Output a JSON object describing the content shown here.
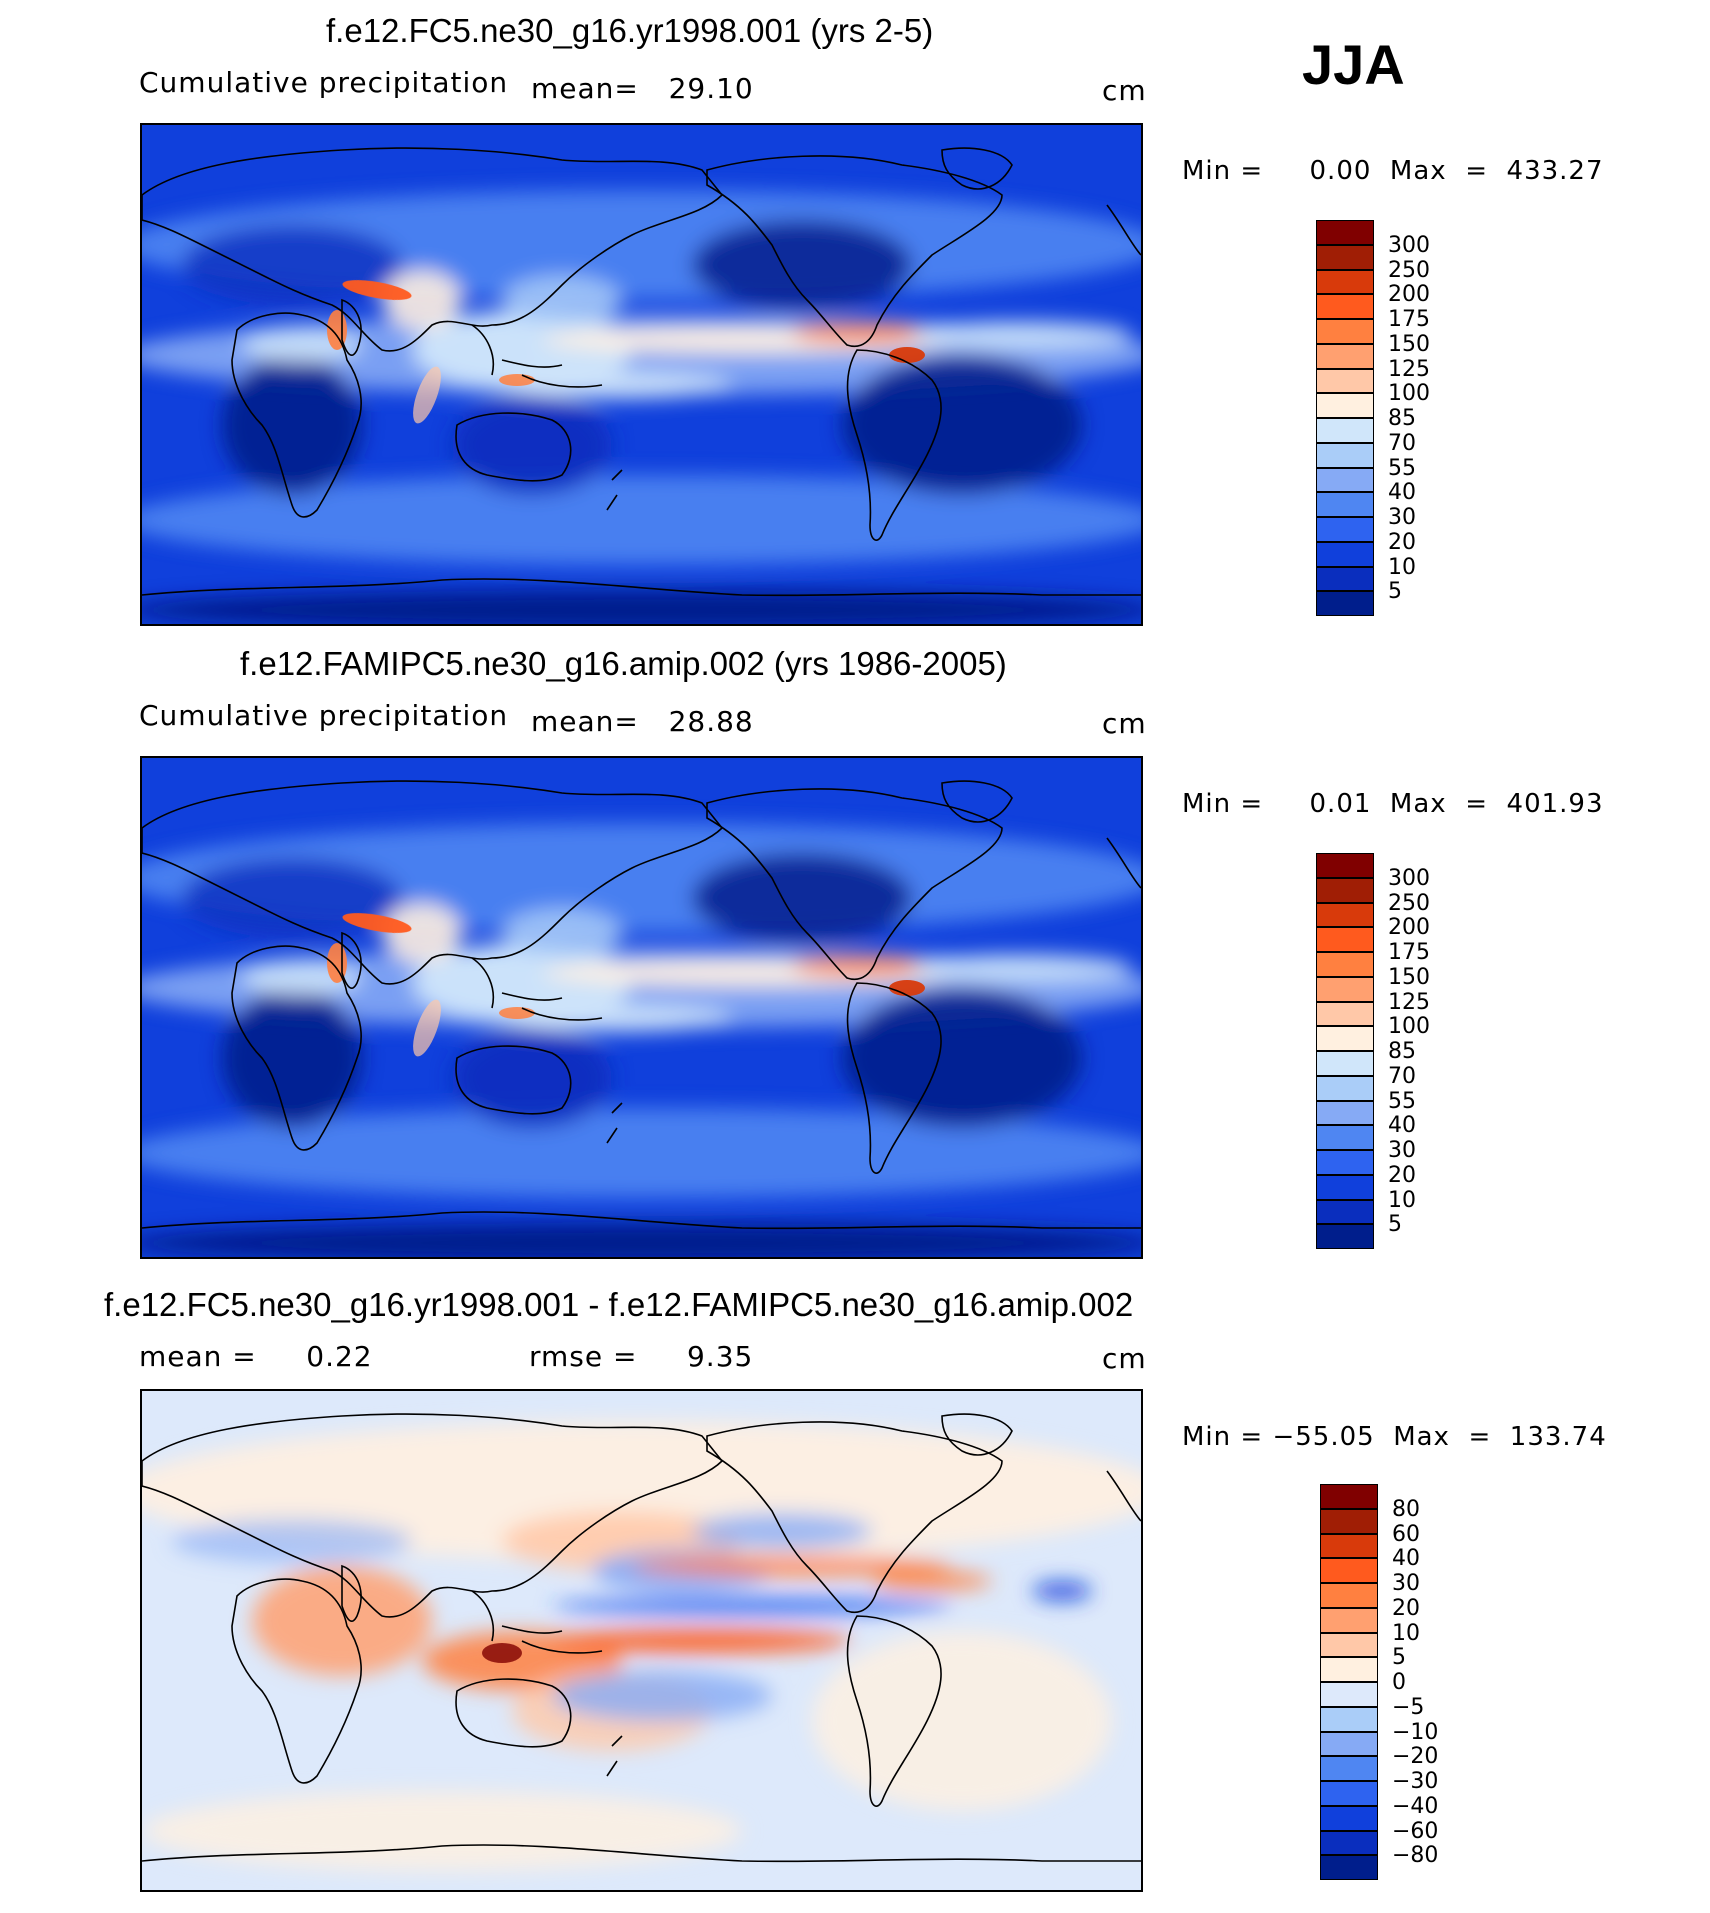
{
  "season": "JJA",
  "panels": [
    {
      "title": "f.e12.FC5.ne30_g16.yr1998.001 (yrs 2-5)",
      "left_label": "Cumulative precipitation",
      "stat1": "mean=   29.10",
      "stat2": "",
      "units": "cm",
      "minmax": "Min =     0.00  Max  =  433.27",
      "colorbar": {
        "labels": [
          "300",
          "250",
          "200",
          "175",
          "150",
          "125",
          "100",
          "85",
          "70",
          "55",
          "40",
          "30",
          "20",
          "10",
          "5"
        ],
        "colors": [
          "#800000",
          "#a01e05",
          "#d83a0b",
          "#ff5a1e",
          "#ff8040",
          "#ffa070",
          "#ffc8a8",
          "#fff0e0",
          "#d0e6fa",
          "#aacdf8",
          "#86aaf5",
          "#4f86f2",
          "#2e63f0",
          "#1040dc",
          "#0a2ebe",
          "#001e8c"
        ]
      },
      "map_kind": "precip"
    },
    {
      "title": "f.e12.FAMIPC5.ne30_g16.amip.002 (yrs 1986-2005)",
      "left_label": "Cumulative precipitation",
      "stat1": "mean=   28.88",
      "stat2": "",
      "units": "cm",
      "minmax": "Min =     0.01  Max  =  401.93",
      "colorbar": {
        "labels": [
          "300",
          "250",
          "200",
          "175",
          "150",
          "125",
          "100",
          "85",
          "70",
          "55",
          "40",
          "30",
          "20",
          "10",
          "5"
        ],
        "colors": [
          "#800000",
          "#a01e05",
          "#d83a0b",
          "#ff5a1e",
          "#ff8040",
          "#ffa070",
          "#ffc8a8",
          "#fff0e0",
          "#d0e6fa",
          "#aacdf8",
          "#86aaf5",
          "#4f86f2",
          "#2e63f0",
          "#1040dc",
          "#0a2ebe",
          "#001e8c"
        ]
      },
      "map_kind": "precip"
    },
    {
      "title": "f.e12.FC5.ne30_g16.yr1998.001 - f.e12.FAMIPC5.ne30_g16.amip.002",
      "left_label": "mean =     0.22",
      "stat1": "",
      "stat2": "rmse =     9.35",
      "units": "cm",
      "minmax": "Min = −55.05  Max  =  133.74",
      "colorbar": {
        "labels": [
          "80",
          "60",
          "40",
          "30",
          "20",
          "10",
          "5",
          "0",
          "−5",
          "−10",
          "−20",
          "−30",
          "−40",
          "−60",
          "−80"
        ],
        "colors": [
          "#800000",
          "#a01e05",
          "#d83a0b",
          "#ff5a1e",
          "#ff8040",
          "#ffa070",
          "#ffc8a8",
          "#fff0e0",
          "#dde9fb",
          "#aacdf8",
          "#86aaf5",
          "#4f86f2",
          "#2e63f0",
          "#1040dc",
          "#0a2ebe",
          "#001e8c"
        ]
      },
      "map_kind": "diff"
    }
  ],
  "chart_data": [
    {
      "type": "heatmap",
      "title": "f.e12.FC5.ne30_g16.yr1998.001 (yrs 2-5)",
      "subtitle": "Cumulative precipitation",
      "units": "cm",
      "mean": 29.1,
      "min": 0.0,
      "max": 433.27,
      "levels": [
        5,
        10,
        20,
        30,
        40,
        55,
        70,
        85,
        100,
        125,
        150,
        175,
        200,
        250,
        300
      ],
      "season": "JJA"
    },
    {
      "type": "heatmap",
      "title": "f.e12.FAMIPC5.ne30_g16.amip.002 (yrs 1986-2005)",
      "subtitle": "Cumulative precipitation",
      "units": "cm",
      "mean": 28.88,
      "min": 0.01,
      "max": 401.93,
      "levels": [
        5,
        10,
        20,
        30,
        40,
        55,
        70,
        85,
        100,
        125,
        150,
        175,
        200,
        250,
        300
      ],
      "season": "JJA"
    },
    {
      "type": "heatmap",
      "title": "f.e12.FC5.ne30_g16.yr1998.001 - f.e12.FAMIPC5.ne30_g16.amip.002",
      "units": "cm",
      "mean": 0.22,
      "rmse": 9.35,
      "min": -55.05,
      "max": 133.74,
      "levels": [
        -80,
        -60,
        -40,
        -30,
        -20,
        -10,
        -5,
        0,
        5,
        10,
        20,
        30,
        40,
        60,
        80
      ],
      "season": "JJA"
    }
  ]
}
